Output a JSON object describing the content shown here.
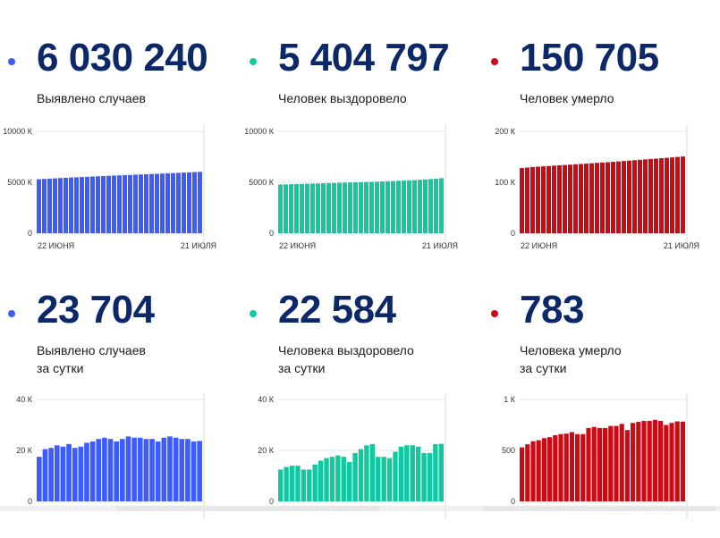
{
  "cards": [
    {
      "id": "cases-total",
      "value": "6 030 240",
      "label_lines": [
        "Выявлено случаев"
      ],
      "color": "#3d5cff",
      "dot_color": "#3d5cff",
      "axis_labels": [
        "10000 К",
        "5000 К",
        "0"
      ],
      "x_labels": [
        "22 июня",
        "21 июля"
      ]
    },
    {
      "id": "recovered-total",
      "value": "5 404 797",
      "label_lines": [
        "Человек выздоровело"
      ],
      "color": "#10c9a0",
      "dot_color": "#10c9a0",
      "axis_labels": [
        "10000 К",
        "5000 К",
        "0"
      ],
      "x_labels": [
        "22 июня",
        "21 июля"
      ]
    },
    {
      "id": "deaths-total",
      "value": "150 705",
      "label_lines": [
        "Человек умерло"
      ],
      "color": "#cc0a14",
      "dot_color": "#cc0a14",
      "axis_labels": [
        "200 К",
        "100 К",
        "0"
      ],
      "x_labels": [
        "22 июня",
        "21 июля"
      ]
    },
    {
      "id": "cases-daily",
      "value": "23 704",
      "label_lines": [
        "Выявлено случаев",
        "за сутки"
      ],
      "color": "#3d5cff",
      "dot_color": "#3d5cff",
      "axis_labels": [
        "40 К",
        "20 К",
        "0"
      ],
      "x_labels": []
    },
    {
      "id": "recovered-daily",
      "value": "22 584",
      "label_lines": [
        "Человека выздоровело",
        "за сутки"
      ],
      "color": "#10c9a0",
      "dot_color": "#10c9a0",
      "axis_labels": [
        "40 К",
        "20 К",
        "0"
      ],
      "x_labels": []
    },
    {
      "id": "deaths-daily",
      "value": "783",
      "label_lines": [
        "Человека умерло",
        "за сутки"
      ],
      "color": "#cc0a14",
      "dot_color": "#cc0a14",
      "axis_labels": [
        "1 К",
        "500",
        "0"
      ],
      "x_labels": []
    }
  ],
  "chart_data": [
    {
      "type": "bar",
      "ylim": [
        0,
        10000
      ],
      "values": [
        5300,
        5330,
        5360,
        5390,
        5420,
        5445,
        5470,
        5495,
        5520,
        5545,
        5570,
        5590,
        5615,
        5635,
        5660,
        5680,
        5705,
        5725,
        5750,
        5770,
        5790,
        5815,
        5835,
        5860,
        5880,
        5905,
        5930,
        5955,
        5980,
        6005,
        6030
      ]
    },
    {
      "type": "bar",
      "ylim": [
        0,
        10000
      ],
      "values": [
        4780,
        4800,
        4815,
        4830,
        4845,
        4860,
        4875,
        4890,
        4905,
        4920,
        4935,
        4950,
        4965,
        4980,
        4995,
        5010,
        5025,
        5045,
        5065,
        5085,
        5105,
        5125,
        5150,
        5170,
        5195,
        5220,
        5250,
        5285,
        5320,
        5360,
        5405
      ]
    },
    {
      "type": "bar",
      "ylim": [
        0,
        200
      ],
      "values": [
        128,
        129,
        130,
        130.7,
        131.4,
        132,
        132.7,
        133.4,
        134,
        134.7,
        135.4,
        136,
        136.7,
        137.4,
        138.1,
        138.8,
        139.5,
        140.3,
        141,
        141.8,
        142.6,
        143.4,
        144.2,
        145,
        145.8,
        146.5,
        147.3,
        148.1,
        148.9,
        149.8,
        150.7
      ]
    },
    {
      "type": "bar",
      "ylim": [
        0,
        40
      ],
      "values": [
        17.5,
        20.5,
        21,
        22,
        21.5,
        22.5,
        21,
        21.5,
        23,
        23.5,
        24.5,
        25,
        24.5,
        23.5,
        24.5,
        25.5,
        25,
        25,
        24.5,
        24.5,
        23.5,
        25,
        25.5,
        25,
        24.5,
        24.5,
        23.5,
        23.7
      ]
    },
    {
      "type": "bar",
      "ylim": [
        0,
        40
      ],
      "values": [
        12.5,
        13.5,
        14,
        14,
        12.5,
        12.5,
        14.5,
        16,
        17,
        17.5,
        18,
        17.5,
        15.5,
        19,
        20.5,
        22,
        22.5,
        17.5,
        17.5,
        17,
        19.5,
        21.5,
        22,
        22,
        21.5,
        19,
        19,
        22.5,
        22.6
      ]
    },
    {
      "type": "bar",
      "ylim": [
        0,
        1000
      ],
      "values": [
        530,
        560,
        590,
        600,
        620,
        630,
        650,
        660,
        665,
        680,
        660,
        660,
        720,
        730,
        720,
        720,
        740,
        740,
        760,
        700,
        770,
        780,
        790,
        790,
        800,
        790,
        750,
        770,
        785,
        783
      ]
    }
  ]
}
